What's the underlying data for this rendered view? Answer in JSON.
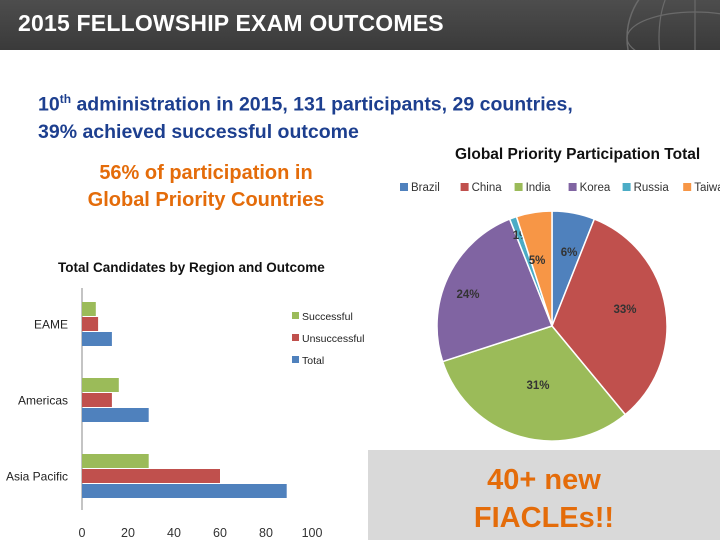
{
  "header": {
    "title": "2015 FELLOWSHIP EXAM OUTCOMES"
  },
  "headline": {
    "line1_prefix": "10",
    "line1_sup": "th",
    "line1_rest": " administration in 2015, 131 participants, 29 countries,",
    "line2": "39% achieved successful outcome"
  },
  "participation": {
    "line1": "56% of participation in",
    "line2": "Global Priority Countries"
  },
  "callout": {
    "line1": "40+ new",
    "line2": "FIACLEs!!"
  },
  "chart_data": [
    {
      "type": "pie",
      "title": "Global Priority Participation Total",
      "legend_position": "top",
      "slices": [
        {
          "label": "Brazil",
          "value": 6,
          "label_text": "6%",
          "color": "#4f81bd"
        },
        {
          "label": "China",
          "value": 33,
          "label_text": "33%",
          "color": "#c0504d"
        },
        {
          "label": "India",
          "value": 31,
          "label_text": "31%",
          "color": "#9bbb59"
        },
        {
          "label": "Korea",
          "value": 24,
          "label_text": "24%",
          "color": "#8064a2"
        },
        {
          "label": "Russia",
          "value": 1,
          "label_text": "1%",
          "color": "#4bacc6"
        },
        {
          "label": "Taiwan",
          "value": 5,
          "label_text": "5%",
          "color": "#f79646"
        }
      ]
    },
    {
      "type": "bar",
      "orientation": "horizontal",
      "title": "Total Candidates by Region and Outcome",
      "categories": [
        "EAME",
        "Americas",
        "Asia Pacific"
      ],
      "series": [
        {
          "name": "Successful",
          "color": "#9bbb59",
          "values": [
            6,
            16,
            29
          ]
        },
        {
          "name": "Unsuccessful",
          "color": "#c0504d",
          "values": [
            7,
            13,
            60
          ]
        },
        {
          "name": "Total",
          "color": "#4f81bd",
          "values": [
            13,
            29,
            89
          ]
        }
      ],
      "xlim": [
        0,
        100
      ],
      "xticks": [
        "0",
        "20",
        "40",
        "60",
        "80",
        "100"
      ],
      "legend_position": "right",
      "grid": false
    }
  ]
}
